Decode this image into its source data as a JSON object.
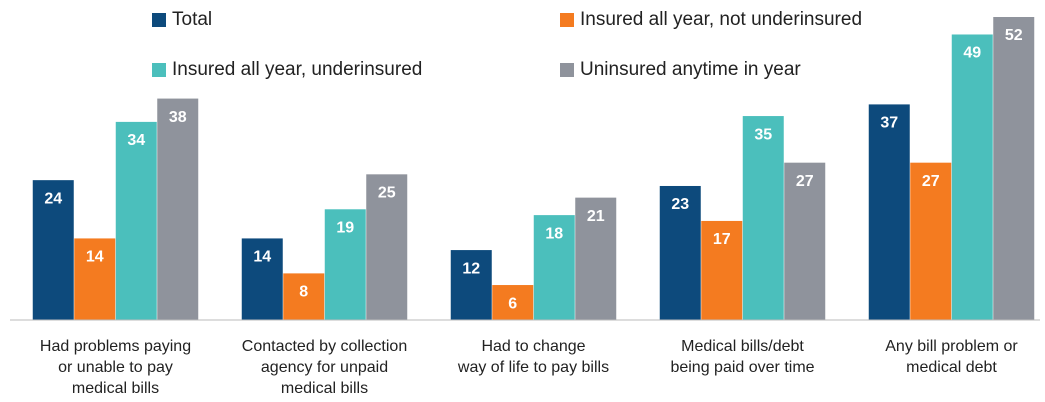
{
  "chart_data": {
    "type": "bar",
    "categories": [
      "Had problems paying\nor unable to pay\nmedical bills",
      "Contacted by collection\nagency for unpaid\nmedical bills",
      "Had to change\nway of life to pay bills",
      "Medical bills/debt\nbeing paid over time",
      "Any bill problem or\nmedical debt"
    ],
    "series": [
      {
        "name": "Total",
        "color": "#0d4a7c",
        "values": [
          24,
          14,
          12,
          23,
          37
        ]
      },
      {
        "name": "Insured all year, not underinsured",
        "color": "#f47b20",
        "values": [
          14,
          8,
          6,
          17,
          27
        ]
      },
      {
        "name": "Insured all year, underinsured",
        "color": "#4bbfbc",
        "values": [
          34,
          19,
          18,
          35,
          49
        ]
      },
      {
        "name": "Uninsured anytime in year",
        "color": "#8f939c",
        "values": [
          38,
          25,
          21,
          27,
          52
        ]
      }
    ],
    "ylim": [
      0,
      52
    ]
  }
}
